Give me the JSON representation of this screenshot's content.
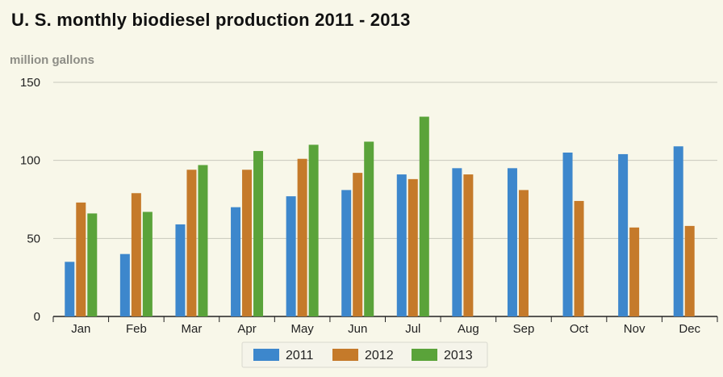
{
  "chart_data": {
    "type": "bar",
    "title": "U. S. monthly biodiesel production 2011 - 2013",
    "ylabel": "million gallons",
    "xlabel": "",
    "ylim": [
      0,
      150
    ],
    "yticks": [
      0,
      50,
      100,
      150
    ],
    "grid": true,
    "legend_position": "bottom",
    "categories": [
      "Jan",
      "Feb",
      "Mar",
      "Apr",
      "May",
      "Jun",
      "Jul",
      "Aug",
      "Sep",
      "Oct",
      "Nov",
      "Dec"
    ],
    "series": [
      {
        "name": "2011",
        "color": "#3d87cc",
        "values": [
          35,
          40,
          59,
          70,
          77,
          81,
          91,
          95,
          95,
          105,
          104,
          109
        ]
      },
      {
        "name": "2012",
        "color": "#c57a2a",
        "values": [
          73,
          79,
          94,
          94,
          101,
          92,
          88,
          91,
          81,
          74,
          57,
          58
        ]
      },
      {
        "name": "2013",
        "color": "#5aa33a",
        "values": [
          66,
          67,
          97,
          106,
          110,
          112,
          128,
          null,
          null,
          null,
          null,
          null
        ]
      }
    ]
  }
}
